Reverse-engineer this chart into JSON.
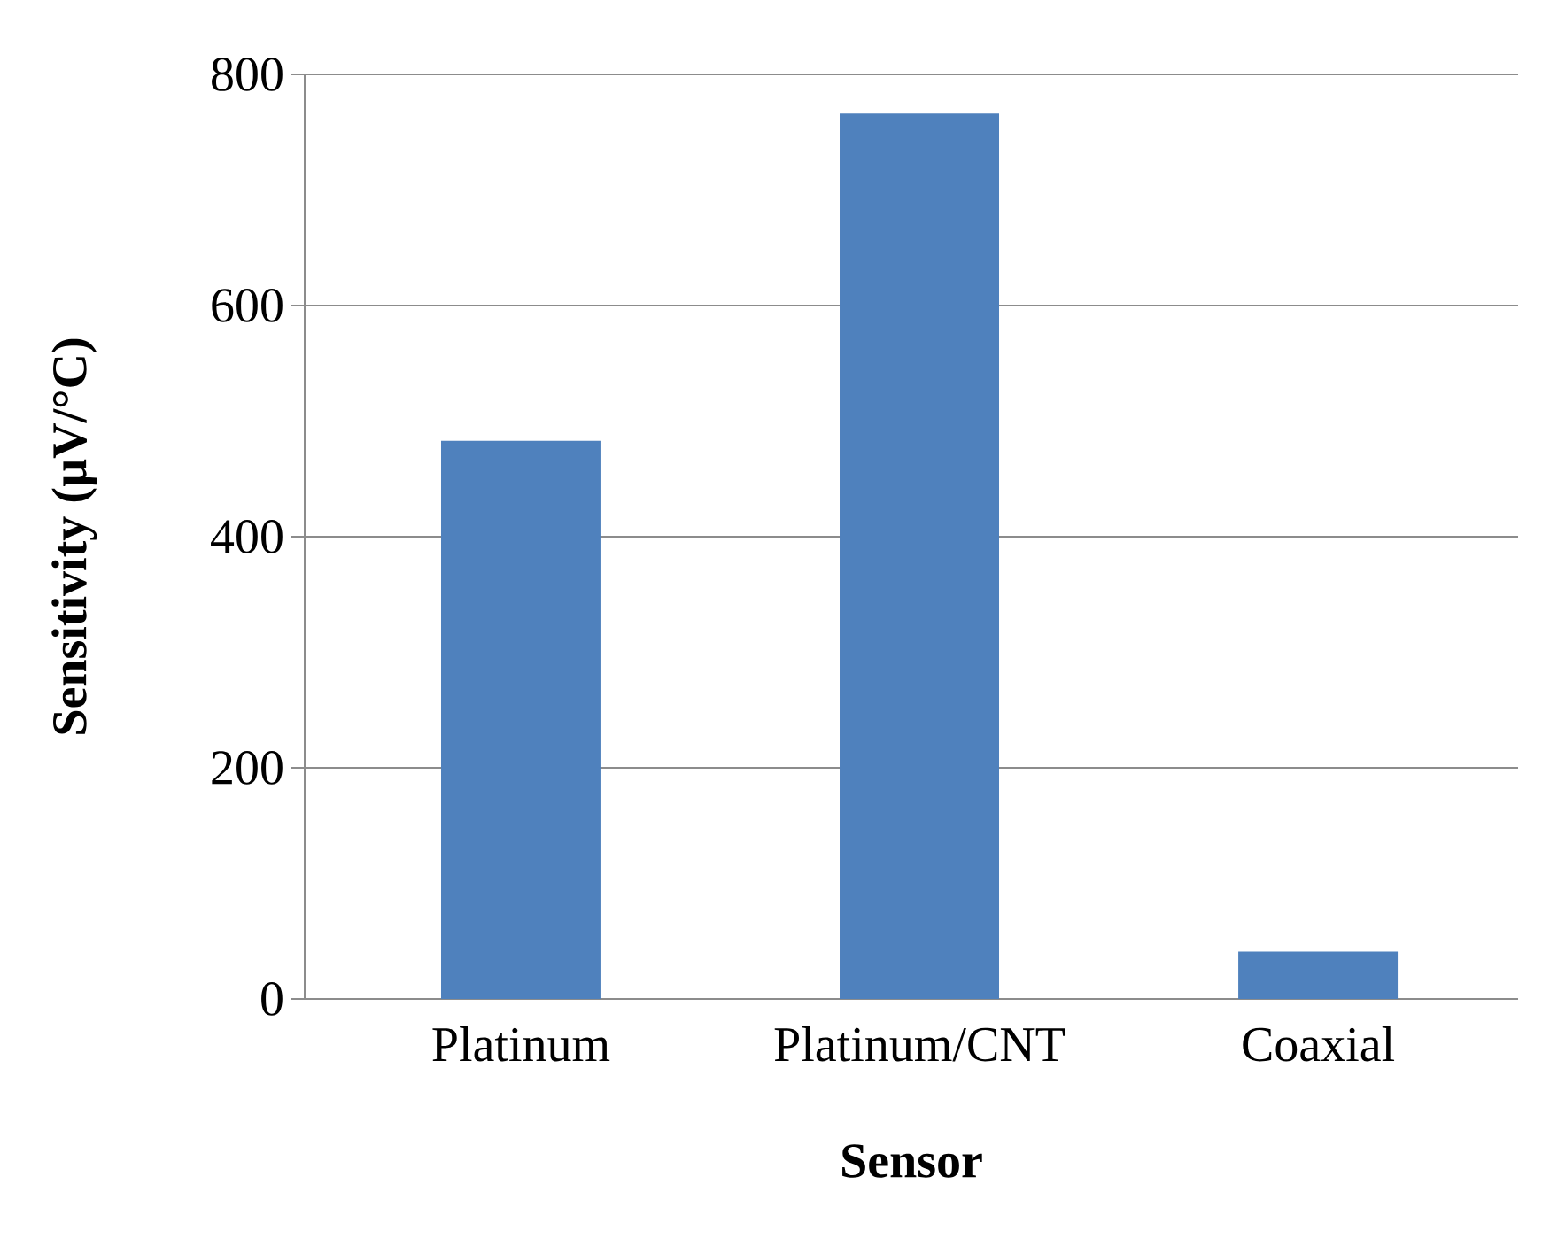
{
  "chart_data": {
    "type": "bar",
    "xlabel": "Sensor",
    "ylabel": "Sensitivity (µV/°C)",
    "categories": [
      "Platinum",
      "Platinum/CNT",
      "Coaxial"
    ],
    "values": [
      483,
      766,
      41
    ],
    "color": "#4f81bd",
    "ylim": [
      0,
      800
    ],
    "yticks": [
      0,
      200,
      400,
      600,
      800
    ],
    "grid": "y"
  }
}
